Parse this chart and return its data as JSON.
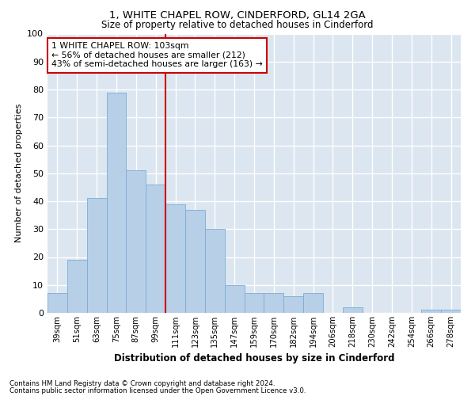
{
  "title": "1, WHITE CHAPEL ROW, CINDERFORD, GL14 2GA",
  "subtitle": "Size of property relative to detached houses in Cinderford",
  "xlabel": "Distribution of detached houses by size in Cinderford",
  "ylabel": "Number of detached properties",
  "bar_color": "#b8cfe8",
  "bar_edge_color": "#7aadd4",
  "background_color": "#dce6f0",
  "fig_background_color": "#ffffff",
  "grid_color": "#ffffff",
  "categories": [
    "39sqm",
    "51sqm",
    "63sqm",
    "75sqm",
    "87sqm",
    "99sqm",
    "111sqm",
    "123sqm",
    "135sqm",
    "147sqm",
    "159sqm",
    "170sqm",
    "182sqm",
    "194sqm",
    "206sqm",
    "218sqm",
    "230sqm",
    "242sqm",
    "254sqm",
    "266sqm",
    "278sqm"
  ],
  "values": [
    7,
    19,
    41,
    79,
    51,
    46,
    39,
    37,
    30,
    10,
    7,
    7,
    6,
    7,
    0,
    2,
    0,
    0,
    0,
    1,
    1
  ],
  "vline_bin_index": 5,
  "annotation_line1": "1 WHITE CHAPEL ROW: 103sqm",
  "annotation_line2": "← 56% of detached houses are smaller (212)",
  "annotation_line3": "43% of semi-detached houses are larger (163) →",
  "annotation_box_facecolor": "#ffffff",
  "annotation_box_edgecolor": "#cc0000",
  "vline_color": "#cc0000",
  "ylim": [
    0,
    100
  ],
  "yticks": [
    0,
    10,
    20,
    30,
    40,
    50,
    60,
    70,
    80,
    90,
    100
  ],
  "footnote1": "Contains HM Land Registry data © Crown copyright and database right 2024.",
  "footnote2": "Contains public sector information licensed under the Open Government Licence v3.0."
}
